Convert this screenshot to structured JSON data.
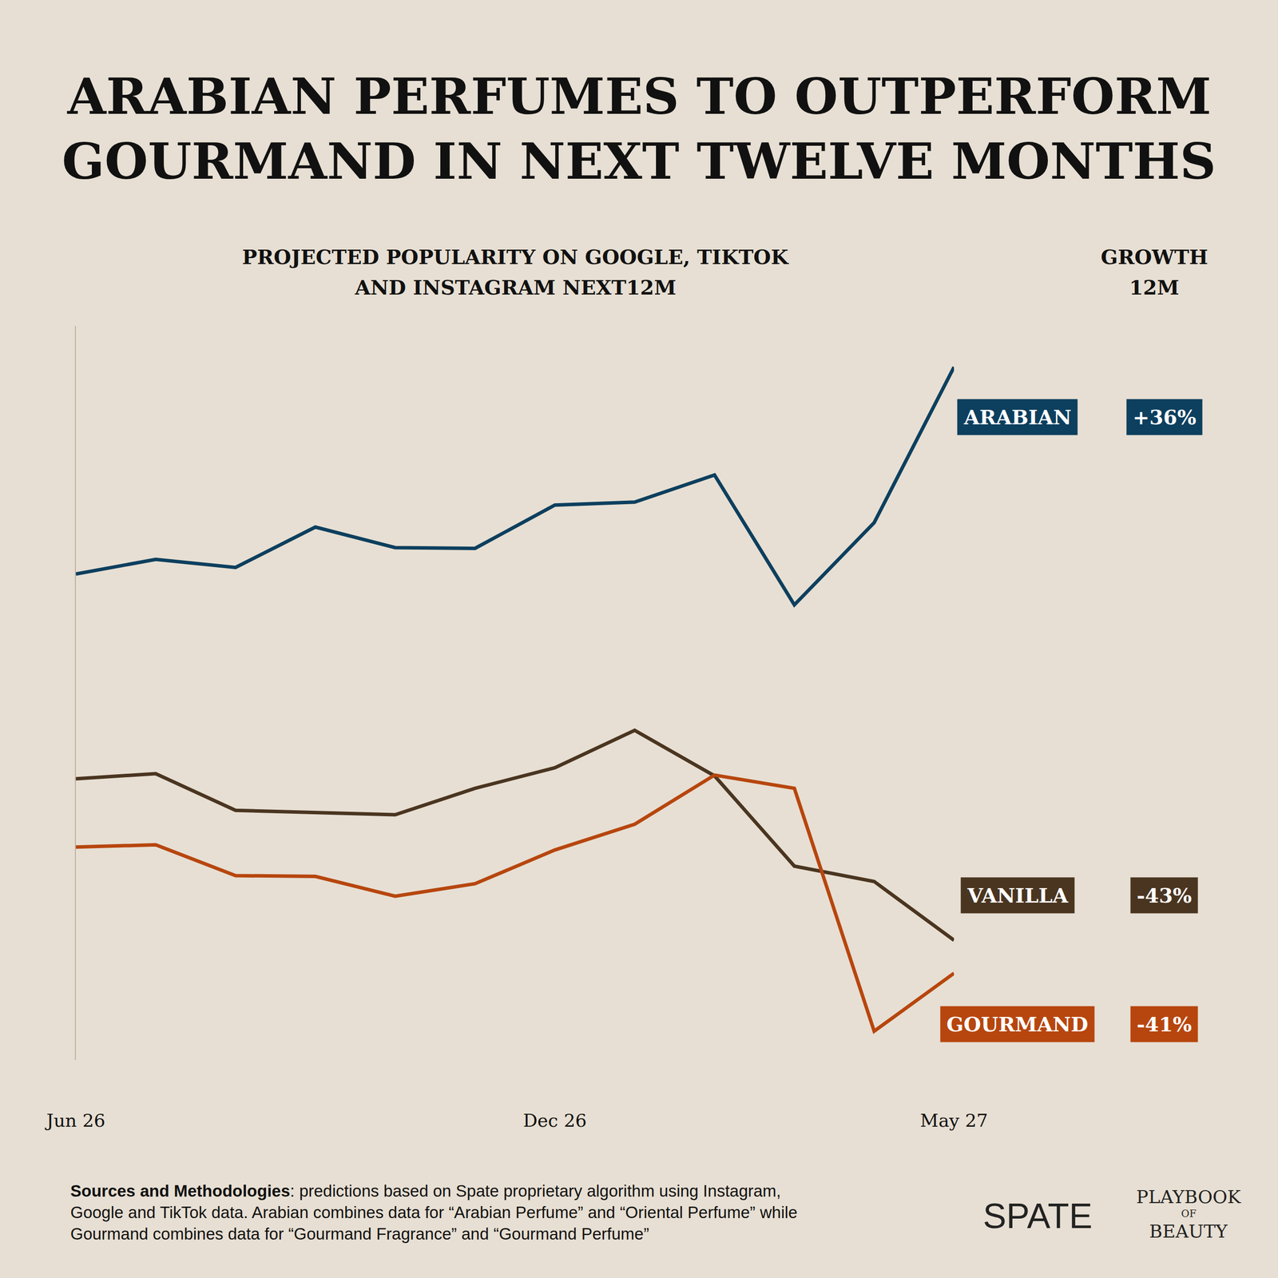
{
  "chart_data": {
    "type": "line",
    "title": "ARABIAN PERFUMES TO OUTPERFORM GOURMAND IN NEXT TWELVE MONTHS",
    "subtitle": "PROJECTED POPULARITY ON GOOGLE, TIKTOK AND INSTAGRAM NEXT12M",
    "growth_header": "GROWTH 12M",
    "categories": [
      "Jun 26",
      null,
      null,
      null,
      null,
      null,
      "Dec 26",
      null,
      null,
      null,
      null,
      "May 27"
    ],
    "ylim": [
      0,
      100
    ],
    "yticks": [],
    "tick_labels": "x",
    "grid": false,
    "series": [
      {
        "name": "ARABIAN",
        "color": "#0d3f5e",
        "values": [
          66.2,
          68.2,
          67.1,
          72.6,
          69.8,
          69.7,
          75.6,
          76.0,
          79.7,
          62.0,
          73.2,
          94.4
        ],
        "growth": 36,
        "growth_label": "+36%"
      },
      {
        "name": "VANILLA",
        "color": "#4a3520",
        "values": [
          38.3,
          39.0,
          34.0,
          33.7,
          33.4,
          37.0,
          39.8,
          44.9,
          38.7,
          26.4,
          24.3,
          16.3
        ],
        "growth": -43,
        "growth_label": "-43%"
      },
      {
        "name": "GOURMAND",
        "color": "#b7460e",
        "values": [
          29.0,
          29.3,
          25.1,
          25.0,
          22.3,
          24.0,
          28.6,
          32.1,
          38.8,
          37.0,
          3.9,
          11.8
        ],
        "growth": -41,
        "growth_label": "-41%"
      }
    ],
    "footnote": {
      "label": "Sources and Methodologies",
      "text": ": predictions based on Spate proprietary algorithm using Instagram, Google and TikTok data. Arabian combines data for “Arabian Perfume” and “Oriental Perfume” while Gourmand combines data for “Gourmand Fragrance” and “Gourmand Perfume”"
    },
    "brands": {
      "spate": "SPATE",
      "playbook": [
        "PLAYBOOK",
        "OF",
        "BEAUTY"
      ]
    }
  }
}
